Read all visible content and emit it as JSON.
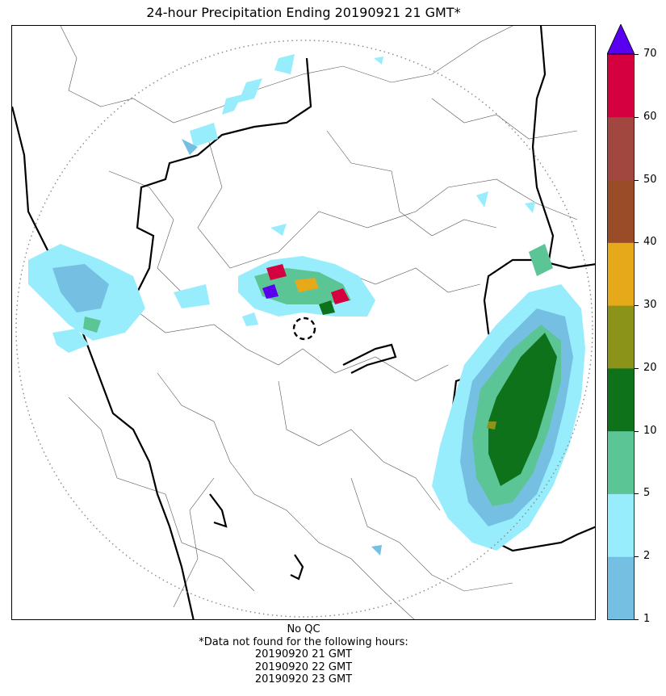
{
  "title": "24-hour Precipitation Ending 20190921 21 GMT*",
  "colorbar": {
    "ticks": [
      "1",
      "2",
      "5",
      "10",
      "20",
      "30",
      "40",
      "50",
      "60",
      "70"
    ],
    "colors": [
      "#75bfe3",
      "#98edfc",
      "#5cc596",
      "#0d721a",
      "#8b9419",
      "#e6a91a",
      "#9a4c28",
      "#a2473f",
      "#d4003f"
    ],
    "extend_color": "#5a00f0"
  },
  "footer": {
    "qc": "No QC",
    "note": "*Data not found for the following hours:",
    "hours": [
      "20190920 21 GMT",
      "20190920 22 GMT",
      "20190920 23 GMT"
    ]
  },
  "map": {
    "range_ring": "dotted",
    "radar_marker": "dashed-circle"
  }
}
